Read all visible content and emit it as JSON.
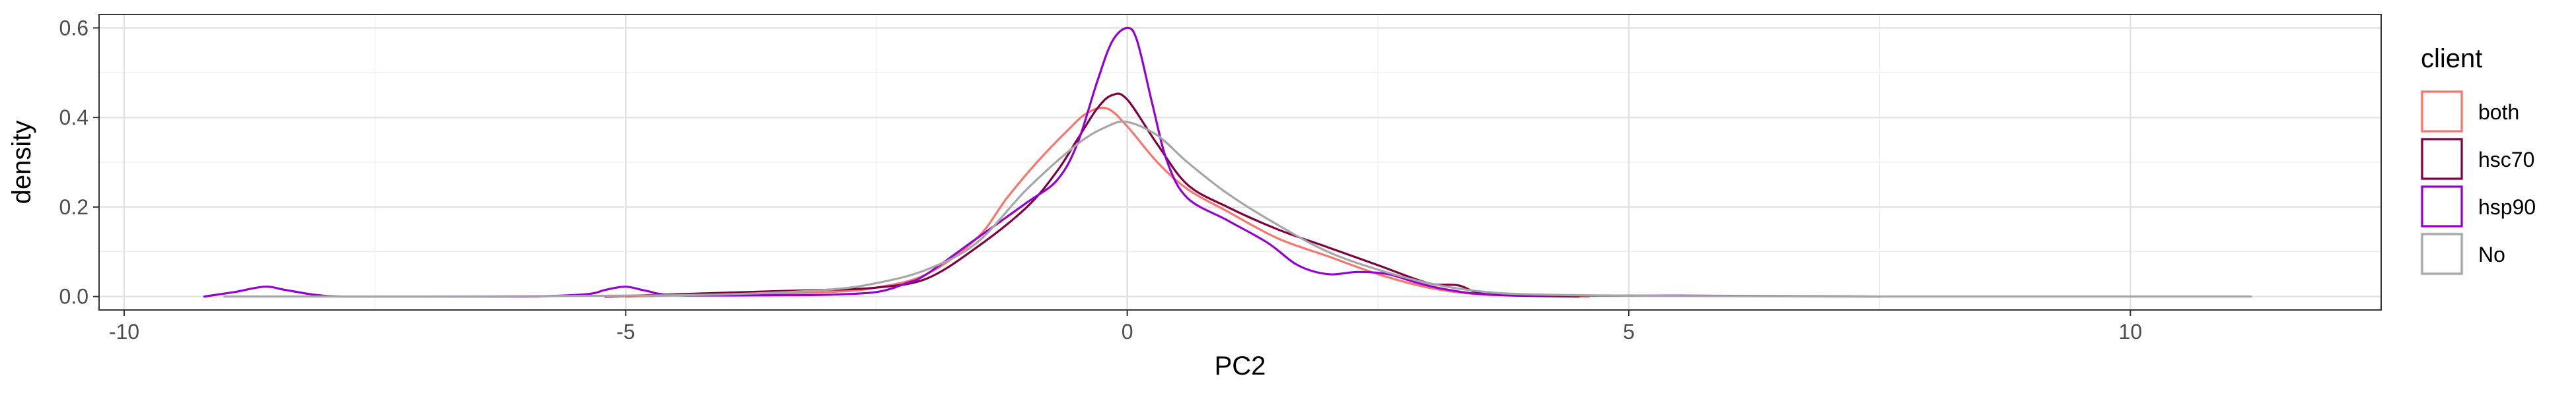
{
  "chart_data": {
    "type": "line",
    "subtype": "density",
    "xlabel": "PC2",
    "ylabel": "density",
    "xlim": [
      -10.25,
      12.5
    ],
    "ylim": [
      -0.03,
      0.63
    ],
    "x_ticks": [
      -10,
      -5,
      0,
      5,
      10
    ],
    "y_ticks": [
      0.0,
      0.2,
      0.4,
      0.6
    ],
    "x_tick_labels": [
      "-10",
      "-5",
      "0",
      "5",
      "10"
    ],
    "y_tick_labels": [
      "0.0",
      "0.2",
      "0.4",
      "0.6"
    ],
    "grid": true,
    "theme": "bw",
    "legend": {
      "title": "client",
      "placement": "right",
      "entries": [
        "both",
        "hsc70",
        "hsp90",
        "No"
      ]
    },
    "series": [
      {
        "name": "both",
        "color": "#F8766D",
        "x": [
          -5.0,
          -4.0,
          -3.0,
          -2.5,
          -2.0,
          -1.5,
          -1.2,
          -0.9,
          -0.6,
          -0.4,
          -0.2,
          0.0,
          0.3,
          0.6,
          1.0,
          1.5,
          2.0,
          2.5,
          3.0,
          3.5,
          4.0,
          4.6
        ],
        "values": [
          0.0,
          0.005,
          0.01,
          0.02,
          0.05,
          0.13,
          0.22,
          0.3,
          0.37,
          0.41,
          0.42,
          0.38,
          0.3,
          0.24,
          0.19,
          0.13,
          0.09,
          0.05,
          0.02,
          0.005,
          0.002,
          0.0
        ]
      },
      {
        "name": "hsc70",
        "color": "#7F0040",
        "x": [
          -5.2,
          -4.5,
          -3.5,
          -3.0,
          -2.5,
          -2.0,
          -1.5,
          -1.0,
          -0.7,
          -0.5,
          -0.3,
          -0.15,
          0.0,
          0.3,
          0.6,
          1.0,
          1.5,
          2.0,
          2.5,
          3.0,
          3.3,
          3.6,
          4.5
        ],
        "values": [
          0.0,
          0.005,
          0.012,
          0.015,
          0.02,
          0.04,
          0.11,
          0.2,
          0.28,
          0.35,
          0.42,
          0.45,
          0.44,
          0.34,
          0.25,
          0.2,
          0.15,
          0.11,
          0.07,
          0.03,
          0.025,
          0.005,
          0.0
        ]
      },
      {
        "name": "hsp90",
        "color": "#9400D3",
        "x": [
          -9.2,
          -8.9,
          -8.6,
          -8.4,
          -8.1,
          -7.8,
          -7.0,
          -6.0,
          -5.4,
          -5.2,
          -5.0,
          -4.8,
          -4.5,
          -3.5,
          -3.0,
          -2.5,
          -2.2,
          -2.0,
          -1.5,
          -1.0,
          -0.7,
          -0.5,
          -0.3,
          -0.15,
          0.0,
          0.1,
          0.25,
          0.4,
          0.6,
          1.0,
          1.4,
          1.7,
          2.0,
          2.3,
          2.6,
          2.9,
          3.2,
          3.6,
          4.5,
          5.5,
          6.5,
          7.5
        ],
        "values": [
          0.0,
          0.01,
          0.022,
          0.015,
          0.004,
          0.0,
          0.0,
          0.0,
          0.005,
          0.015,
          0.022,
          0.013,
          0.003,
          0.003,
          0.004,
          0.01,
          0.03,
          0.05,
          0.13,
          0.21,
          0.26,
          0.34,
          0.48,
          0.57,
          0.6,
          0.57,
          0.43,
          0.3,
          0.22,
          0.17,
          0.12,
          0.07,
          0.05,
          0.055,
          0.05,
          0.03,
          0.015,
          0.005,
          0.002,
          0.002,
          0.001,
          0.0
        ]
      },
      {
        "name": "No",
        "color": "#A6A6A6",
        "x": [
          -9.0,
          -7.0,
          -5.0,
          -4.0,
          -3.0,
          -2.5,
          -2.0,
          -1.5,
          -1.0,
          -0.5,
          -0.2,
          0.0,
          0.3,
          0.6,
          1.0,
          1.5,
          2.0,
          2.5,
          3.0,
          3.5,
          4.0,
          5.0,
          6.0,
          7.0,
          8.0,
          9.0,
          10.0,
          11.2
        ],
        "values": [
          0.0,
          0.0,
          0.002,
          0.005,
          0.015,
          0.03,
          0.06,
          0.12,
          0.24,
          0.34,
          0.38,
          0.39,
          0.36,
          0.3,
          0.23,
          0.16,
          0.1,
          0.06,
          0.03,
          0.012,
          0.005,
          0.002,
          0.001,
          0.0,
          0.0,
          0.0,
          0.0,
          0.0
        ]
      }
    ]
  }
}
